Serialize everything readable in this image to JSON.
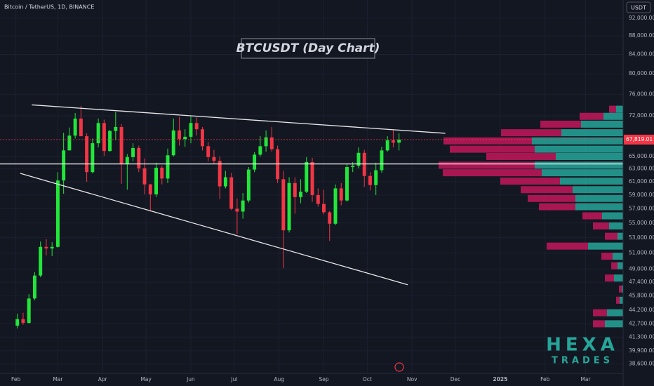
{
  "chart_data": {
    "type": "candlestick",
    "symbol": "Bitcoin / TetherUS, 1D, BINANCE",
    "title": "BTCUSDT (Day Chart)",
    "currency": "USDT",
    "watermark": [
      "HEXA",
      "TRADES"
    ],
    "price_label": "67,819.01",
    "log_scale": true,
    "up_color": "#22e63a",
    "down_color": "#f23645",
    "xlim": [
      20,
      451
    ],
    "ylim": [
      37700,
      96300
    ],
    "xticks": [
      {
        "value": 31,
        "label": "Feb"
      },
      {
        "value": 60,
        "label": "Mar"
      },
      {
        "value": 91,
        "label": "Apr"
      },
      {
        "value": 121,
        "label": "May"
      },
      {
        "value": 152,
        "label": "Jun"
      },
      {
        "value": 182,
        "label": "Jul"
      },
      {
        "value": 213,
        "label": "Aug"
      },
      {
        "value": 244,
        "label": "Sep"
      },
      {
        "value": 274,
        "label": "Oct"
      },
      {
        "value": 305,
        "label": "Nov"
      },
      {
        "value": 335,
        "label": "Dec"
      },
      {
        "value": 366,
        "label": "2025"
      },
      {
        "value": 397,
        "label": "Feb"
      },
      {
        "value": 425,
        "label": "Mar"
      }
    ],
    "yticks": [
      {
        "value": 92000,
        "label": "92,000.00"
      },
      {
        "value": 88000,
        "label": "88,000.00"
      },
      {
        "value": 84000,
        "label": "84,000.00"
      },
      {
        "value": 80000,
        "label": "80,000.00"
      },
      {
        "value": 76000,
        "label": "76,000.00"
      },
      {
        "value": 72000,
        "label": "72,000.00"
      },
      {
        "value": 65000,
        "label": "65,000.00"
      },
      {
        "value": 63000,
        "label": "63,000.00"
      },
      {
        "value": 61000,
        "label": "61,000.00"
      },
      {
        "value": 59000,
        "label": "59,000.00"
      },
      {
        "value": 57000,
        "label": "57,000.00"
      },
      {
        "value": 55000,
        "label": "55,000.00"
      },
      {
        "value": 53000,
        "label": "53,000.00"
      },
      {
        "value": 51000,
        "label": "51,000.00"
      },
      {
        "value": 49000,
        "label": "49,000.00"
      },
      {
        "value": 47400,
        "label": "47,400.00"
      },
      {
        "value": 45800,
        "label": "45,800.00"
      },
      {
        "value": 44200,
        "label": "44,200.00"
      },
      {
        "value": 42700,
        "label": "42,700.00"
      },
      {
        "value": 41300,
        "label": "41,300.00"
      },
      {
        "value": 39900,
        "label": "39,900.00"
      },
      {
        "value": 38600,
        "label": "38,600.00"
      }
    ],
    "x": [
      32,
      36,
      40,
      44,
      48,
      52,
      56,
      60,
      64,
      68,
      72,
      76,
      80,
      84,
      88,
      92,
      96,
      100,
      104,
      108,
      112,
      116,
      120,
      124,
      128,
      132,
      136,
      140,
      144,
      148,
      152,
      156,
      160,
      164,
      168,
      172,
      176,
      180,
      184,
      188,
      192,
      196,
      200,
      204,
      208,
      212,
      216,
      220,
      224,
      228,
      232,
      236,
      240,
      244,
      248,
      252,
      256,
      260,
      264,
      268,
      272,
      276,
      280,
      284,
      288,
      292,
      296
    ],
    "open": [
      42500,
      43200,
      42800,
      45500,
      48200,
      51800,
      51600,
      51800,
      61200,
      66000,
      68500,
      71500,
      68400,
      62500,
      67200,
      70700,
      65900,
      69300,
      70000,
      63800,
      64900,
      66400,
      63100,
      60600,
      59100,
      63200,
      61500,
      65200,
      69400,
      67900,
      68300,
      70700,
      69600,
      66700,
      64900,
      64300,
      60300,
      61700,
      57000,
      56600,
      58200,
      62900,
      65300,
      66700,
      68200,
      66200,
      61400,
      54000,
      60800,
      58700,
      59500,
      64100,
      59000,
      57700,
      56500,
      54900,
      60000,
      58200,
      63300,
      63500,
      65600,
      61900,
      60500,
      62800,
      66000,
      67700,
      67300
    ],
    "high": [
      43800,
      43900,
      46000,
      48600,
      52500,
      52800,
      52400,
      62500,
      69000,
      69900,
      72500,
      73800,
      68900,
      68000,
      71500,
      71300,
      69500,
      72700,
      70500,
      65400,
      67200,
      66800,
      64700,
      60700,
      64000,
      63500,
      66300,
      71500,
      71800,
      69600,
      71900,
      71700,
      70000,
      67400,
      66100,
      65000,
      62700,
      62400,
      58500,
      59300,
      63300,
      65700,
      68400,
      69400,
      70000,
      66800,
      62700,
      61700,
      61700,
      61400,
      64900,
      64800,
      60000,
      59800,
      56700,
      60600,
      60800,
      63800,
      64100,
      66500,
      66100,
      62500,
      64000,
      66600,
      68400,
      69500,
      68900
    ],
    "low": [
      42200,
      42600,
      42700,
      45300,
      48000,
      50700,
      50600,
      51700,
      59200,
      66000,
      68000,
      68500,
      61000,
      62300,
      66500,
      65100,
      65800,
      67700,
      60700,
      59800,
      64200,
      62500,
      59100,
      56600,
      58700,
      60600,
      60800,
      65000,
      66800,
      66600,
      67200,
      68500,
      66000,
      64200,
      63800,
      58400,
      60000,
      56800,
      53500,
      55600,
      57900,
      62500,
      65000,
      65800,
      65800,
      60800,
      49100,
      53700,
      56300,
      57800,
      59300,
      58000,
      57300,
      56200,
      52600,
      54700,
      57500,
      58000,
      62500,
      63100,
      60200,
      59700,
      59000,
      62400,
      65800,
      66500,
      66000
    ],
    "close": [
      43200,
      42800,
      45500,
      48200,
      51800,
      51600,
      51800,
      61200,
      66000,
      68500,
      71500,
      68400,
      62500,
      67200,
      70700,
      65900,
      69300,
      70000,
      63800,
      64900,
      66400,
      63100,
      60600,
      59100,
      63200,
      61500,
      65200,
      69400,
      67900,
      68300,
      70700,
      69600,
      66700,
      64900,
      64300,
      60300,
      61700,
      57000,
      56600,
      58200,
      62900,
      65300,
      66700,
      68200,
      66200,
      61400,
      54000,
      60800,
      58700,
      59500,
      64100,
      59000,
      57700,
      56500,
      54900,
      60000,
      58200,
      63300,
      63500,
      65600,
      61900,
      60500,
      62800,
      66000,
      67700,
      67300,
      67819.01
    ],
    "trendlines": [
      {
        "x": [
          42,
          328
        ],
        "y": [
          74000,
          68900
        ]
      },
      {
        "x": [
          34,
          302
        ],
        "y": [
          62300,
          47100
        ]
      }
    ],
    "hline": 63800,
    "volume_profile": {
      "up_color": "#26a69a",
      "down_color": "#c2185b",
      "price": [
        73200,
        71900,
        70500,
        69000,
        67600,
        66200,
        65000,
        63600,
        62400,
        61100,
        59800,
        58500,
        57300,
        56000,
        54600,
        53200,
        51900,
        50600,
        49400,
        47900,
        46600,
        45300,
        43900,
        42700
      ],
      "up": [
        10,
        28,
        60,
        88,
        130,
        126,
        96,
        126,
        116,
        90,
        72,
        68,
        68,
        30,
        20,
        8,
        50,
        15,
        8,
        13,
        2,
        5,
        23,
        26
      ],
      "down": [
        10,
        34,
        58,
        86,
        126,
        121,
        99,
        137,
        141,
        85,
        74,
        68,
        52,
        28,
        23,
        18,
        59,
        16,
        9,
        13,
        4,
        5,
        20,
        17
      ]
    }
  }
}
